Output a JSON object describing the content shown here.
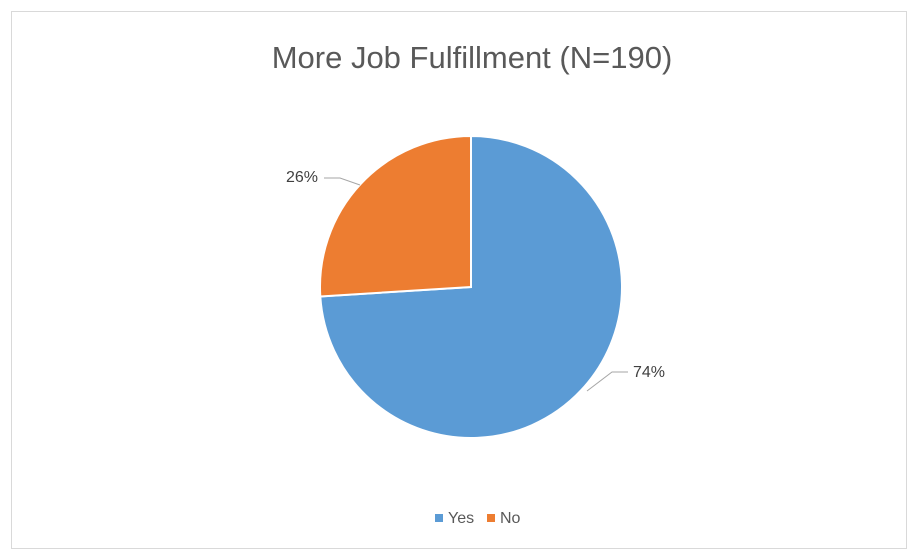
{
  "chart_data": {
    "type": "pie",
    "title": "More Job Fulfillment (N=190)",
    "categories": [
      "Yes",
      "No"
    ],
    "values": [
      74,
      26
    ],
    "data_labels": [
      "74%",
      "26%"
    ],
    "colors": [
      "#5B9BD5",
      "#ED7D31"
    ],
    "legend": {
      "position": "bottom",
      "entries": [
        "Yes",
        "No"
      ]
    }
  }
}
